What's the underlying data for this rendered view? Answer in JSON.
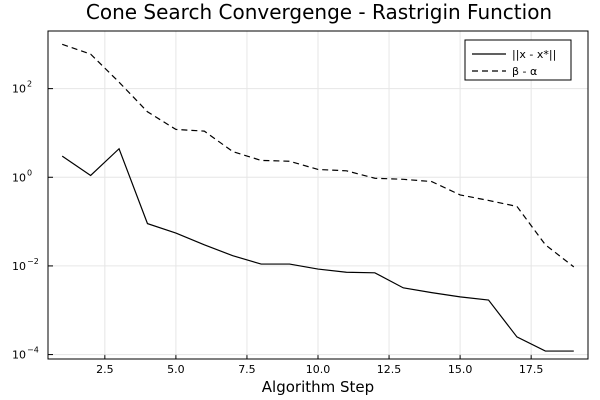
{
  "chart_data": {
    "type": "line",
    "title": "Cone Search Convergenge - Rastrigin Function",
    "xlabel": "Algorithm Step",
    "ylabel": "",
    "yscale": "log",
    "xlim": [
      0.5,
      19.5
    ],
    "ylim_log10": [
      -4.1,
      3.3
    ],
    "x_ticks": [
      2.5,
      5.0,
      7.5,
      10.0,
      12.5,
      15.0,
      17.5
    ],
    "x_tick_labels": [
      "2.5",
      "5.0",
      "7.5",
      "10.0",
      "12.5",
      "15.0",
      "17.5"
    ],
    "y_ticks_log10": [
      2,
      0,
      -2,
      -4
    ],
    "y_tick_labels": [
      {
        "base": "10",
        "exp": "2"
      },
      {
        "base": "10",
        "exp": "0"
      },
      {
        "base": "10",
        "exp": "−2"
      },
      {
        "base": "10",
        "exp": "−4"
      }
    ],
    "grid": true,
    "legend_position": "top-right",
    "x": [
      1,
      2,
      3,
      4,
      5,
      6,
      7,
      8,
      9,
      10,
      11,
      12,
      13,
      14,
      15,
      16,
      17,
      18,
      19
    ],
    "series": [
      {
        "name": "||x - x*||",
        "dash": "solid",
        "color": "#000000",
        "values": [
          3.0,
          1.1,
          4.4,
          0.09,
          0.055,
          0.03,
          0.017,
          0.011,
          0.011,
          0.0085,
          0.0072,
          0.007,
          0.0032,
          0.0025,
          0.002,
          0.0017,
          0.00025,
          0.00012,
          0.00012
        ]
      },
      {
        "name": "β - α",
        "dash": "dashed",
        "color": "#000000",
        "values": [
          1000,
          600,
          140,
          30,
          12,
          11,
          3.8,
          2.4,
          2.3,
          1.5,
          1.4,
          0.95,
          0.9,
          0.8,
          0.4,
          0.3,
          0.22,
          0.03,
          0.0095
        ]
      }
    ]
  }
}
